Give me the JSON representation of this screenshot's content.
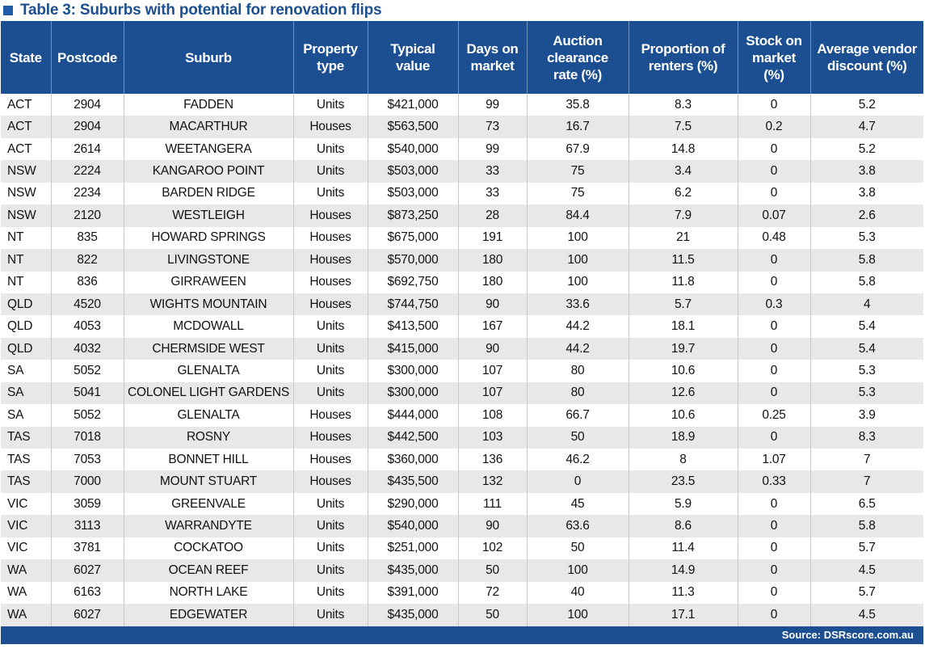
{
  "title": "Table 3: Suburbs with potential for renovation flips",
  "colors": {
    "header_bg": "#1b4f91",
    "title_color": "#1c4f8f",
    "stripe": "#e8e8e8"
  },
  "columns": [
    [
      "State"
    ],
    [
      "Postcode"
    ],
    [
      "Suburb"
    ],
    [
      "Property",
      "type"
    ],
    [
      "Typical",
      "value"
    ],
    [
      "Days on",
      "market"
    ],
    [
      "Auction",
      "clearance",
      "rate (%)"
    ],
    [
      "Proportion of",
      "renters (%)"
    ],
    [
      "Stock on",
      "market",
      "(%)"
    ],
    [
      "Average vendor",
      "discount (%)"
    ]
  ],
  "rows": [
    [
      "ACT",
      "2904",
      "FADDEN",
      "Units",
      "$421,000",
      "99",
      "35.8",
      "8.3",
      "0",
      "5.2"
    ],
    [
      "ACT",
      "2904",
      "MACARTHUR",
      "Houses",
      "$563,500",
      "73",
      "16.7",
      "7.5",
      "0.2",
      "4.7"
    ],
    [
      "ACT",
      "2614",
      "WEETANGERA",
      "Units",
      "$540,000",
      "99",
      "67.9",
      "14.8",
      "0",
      "5.2"
    ],
    [
      "NSW",
      "2224",
      "KANGAROO POINT",
      "Units",
      "$503,000",
      "33",
      "75",
      "3.4",
      "0",
      "3.8"
    ],
    [
      "NSW",
      "2234",
      "BARDEN RIDGE",
      "Units",
      "$503,000",
      "33",
      "75",
      "6.2",
      "0",
      "3.8"
    ],
    [
      "NSW",
      "2120",
      "WESTLEIGH",
      "Houses",
      "$873,250",
      "28",
      "84.4",
      "7.9",
      "0.07",
      "2.6"
    ],
    [
      "NT",
      "835",
      "HOWARD SPRINGS",
      "Houses",
      "$675,000",
      "191",
      "100",
      "21",
      "0.48",
      "5.3"
    ],
    [
      "NT",
      "822",
      "LIVINGSTONE",
      "Houses",
      "$570,000",
      "180",
      "100",
      "11.5",
      "0",
      "5.8"
    ],
    [
      "NT",
      "836",
      "GIRRAWEEN",
      "Houses",
      "$692,750",
      "180",
      "100",
      "11.8",
      "0",
      "5.8"
    ],
    [
      "QLD",
      "4520",
      "WIGHTS MOUNTAIN",
      "Houses",
      "$744,750",
      "90",
      "33.6",
      "5.7",
      "0.3",
      "4"
    ],
    [
      "QLD",
      "4053",
      "MCDOWALL",
      "Units",
      "$413,500",
      "167",
      "44.2",
      "18.1",
      "0",
      "5.4"
    ],
    [
      "QLD",
      "4032",
      "CHERMSIDE WEST",
      "Units",
      "$415,000",
      "90",
      "44.2",
      "19.7",
      "0",
      "5.4"
    ],
    [
      "SA",
      "5052",
      "GLENALTA",
      "Units",
      "$300,000",
      "107",
      "80",
      "10.6",
      "0",
      "5.3"
    ],
    [
      "SA",
      "5041",
      "COLONEL LIGHT GARDENS",
      "Units",
      "$300,000",
      "107",
      "80",
      "12.6",
      "0",
      "5.3"
    ],
    [
      "SA",
      "5052",
      "GLENALTA",
      "Houses",
      "$444,000",
      "108",
      "66.7",
      "10.6",
      "0.25",
      "3.9"
    ],
    [
      "TAS",
      "7018",
      "ROSNY",
      "Houses",
      "$442,500",
      "103",
      "50",
      "18.9",
      "0",
      "8.3"
    ],
    [
      "TAS",
      "7053",
      "BONNET HILL",
      "Houses",
      "$360,000",
      "136",
      "46.2",
      "8",
      "1.07",
      "7"
    ],
    [
      "TAS",
      "7000",
      "MOUNT STUART",
      "Houses",
      "$435,500",
      "132",
      "0",
      "23.5",
      "0.33",
      "7"
    ],
    [
      "VIC",
      "3059",
      "GREENVALE",
      "Units",
      "$290,000",
      "111",
      "45",
      "5.9",
      "0",
      "6.5"
    ],
    [
      "VIC",
      "3113",
      "WARRANDYTE",
      "Units",
      "$540,000",
      "90",
      "63.6",
      "8.6",
      "0",
      "5.8"
    ],
    [
      "VIC",
      "3781",
      "COCKATOO",
      "Units",
      "$251,000",
      "102",
      "50",
      "11.4",
      "0",
      "5.7"
    ],
    [
      "WA",
      "6027",
      "OCEAN REEF",
      "Units",
      "$435,000",
      "50",
      "100",
      "14.9",
      "0",
      "4.5"
    ],
    [
      "WA",
      "6163",
      "NORTH LAKE",
      "Units",
      "$391,000",
      "72",
      "40",
      "11.3",
      "0",
      "5.7"
    ],
    [
      "WA",
      "6027",
      "EDGEWATER",
      "Units",
      "$435,000",
      "50",
      "100",
      "17.1",
      "0",
      "4.5"
    ]
  ],
  "source": "Source: DSRscore.com.au"
}
